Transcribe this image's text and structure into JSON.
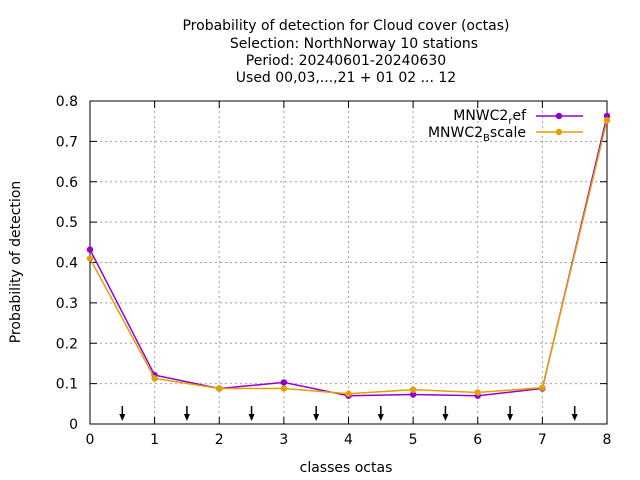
{
  "chart_data": {
    "type": "line",
    "title_lines": [
      "Probability of detection  for Cloud cover (octas)",
      "Selection: NorthNorway      10 stations",
      "Period: 20240601-20240630",
      "Used 00,03,...,21 + 01 02 ... 12"
    ],
    "xlabel": "classes octas",
    "ylabel": "Probability of detection",
    "xlim": [
      0,
      8
    ],
    "ylim": [
      0,
      0.8
    ],
    "x_ticks": [
      "0",
      "1",
      "2",
      "3",
      "4",
      "5",
      "6",
      "7",
      "8"
    ],
    "y_ticks": [
      "0",
      "0.1",
      "0.2",
      "0.3",
      "0.4",
      "0.5",
      "0.6",
      "0.7",
      "0.8"
    ],
    "grid": true,
    "legend_position": "top-right",
    "arrows_x": [
      0.5,
      1.5,
      2.5,
      3.5,
      4.5,
      5.5,
      6.5,
      7.5
    ],
    "series": [
      {
        "name_main": "MNWC2",
        "name_sub": "r",
        "name_rest": "ef",
        "color": "#9400d3",
        "x": [
          0,
          1,
          2,
          3,
          4,
          5,
          6,
          7,
          8
        ],
        "values": [
          0.432,
          0.121,
          0.088,
          0.103,
          0.07,
          0.073,
          0.07,
          0.088,
          0.763
        ]
      },
      {
        "name_main": "MNWC2",
        "name_sub": "B",
        "name_rest": "scale",
        "color": "#e69f00",
        "x": [
          0,
          1,
          2,
          3,
          4,
          5,
          6,
          7,
          8
        ],
        "values": [
          0.41,
          0.113,
          0.088,
          0.088,
          0.075,
          0.085,
          0.078,
          0.09,
          0.752
        ]
      }
    ]
  }
}
